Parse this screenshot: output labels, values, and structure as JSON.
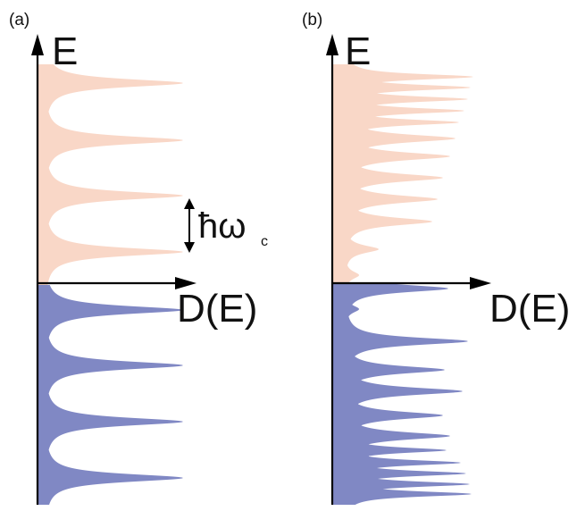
{
  "panels": [
    {
      "label": "(a)",
      "y_axis_label": "E",
      "x_axis_label": "D(E)",
      "annotation": {
        "symbol": "ħω",
        "subscript": "c"
      }
    },
    {
      "label": "(b)",
      "y_axis_label": "E",
      "x_axis_label": "D(E)"
    }
  ],
  "colors": {
    "electron_fill": "#f9d7c7",
    "hole_fill": "#8088c4",
    "axis": "#000000"
  }
}
